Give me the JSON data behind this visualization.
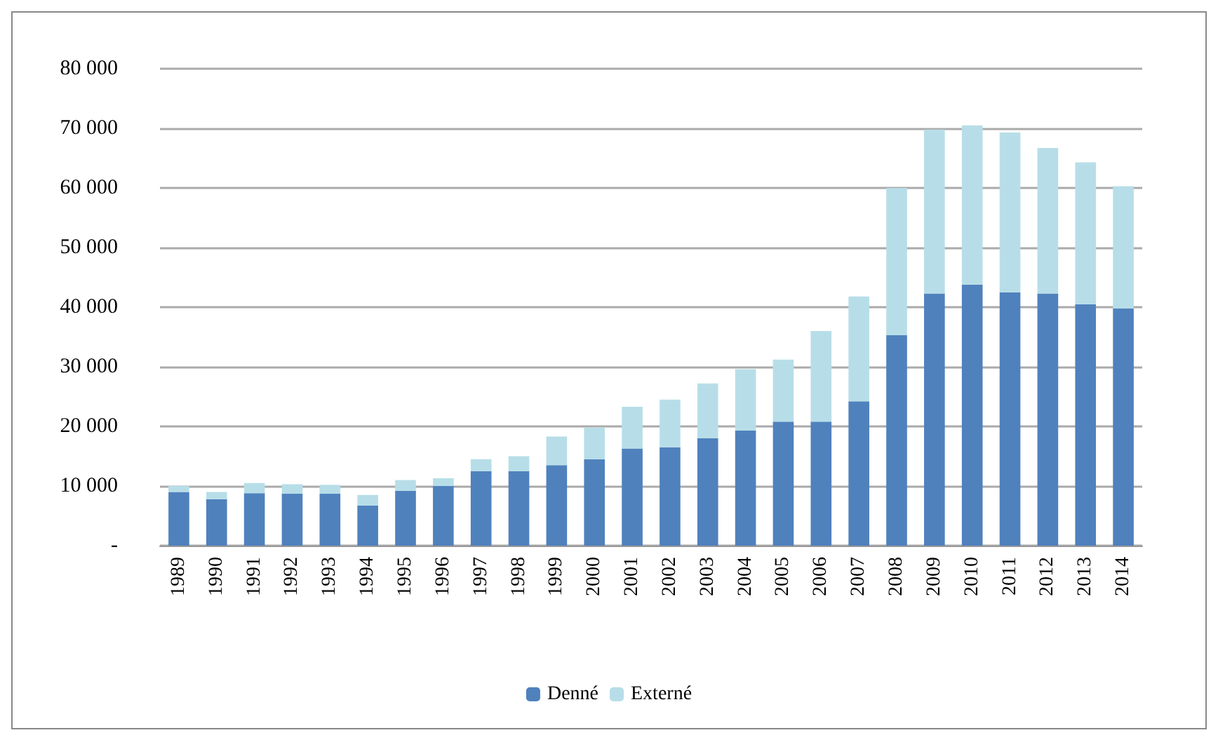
{
  "chart_data": {
    "type": "bar",
    "stacked": true,
    "categories": [
      "1989",
      "1990",
      "1991",
      "1992",
      "1993",
      "1994",
      "1995",
      "1996",
      "1997",
      "1998",
      "1999",
      "2000",
      "2001",
      "2002",
      "2003",
      "2004",
      "2005",
      "2006",
      "2007",
      "2008",
      "2009",
      "2010",
      "2011",
      "2012",
      "2013",
      "2014"
    ],
    "series": [
      {
        "name": "Denné",
        "color": "#4f81bd",
        "values": [
          9000,
          7800,
          8800,
          8700,
          8700,
          6700,
          9200,
          10000,
          12500,
          12500,
          13500,
          14500,
          16300,
          16500,
          18000,
          19300,
          20800,
          20800,
          24200,
          35300,
          42300,
          43800,
          42500,
          42300,
          40500,
          39800
        ]
      },
      {
        "name": "Externé",
        "color": "#b7dee8",
        "values": [
          1000,
          1200,
          1700,
          1600,
          1500,
          1800,
          1800,
          1300,
          2000,
          2500,
          4800,
          5300,
          7000,
          8000,
          9200,
          10300,
          10400,
          15200,
          17600,
          24700,
          27500,
          26700,
          26800,
          24400,
          23800,
          20500
        ]
      }
    ],
    "ylim": [
      0,
      80000
    ],
    "yticks": [
      {
        "value": 0,
        "label": "-"
      },
      {
        "value": 10000,
        "label": "10 000"
      },
      {
        "value": 20000,
        "label": "20 000"
      },
      {
        "value": 30000,
        "label": "30 000"
      },
      {
        "value": 40000,
        "label": "40 000"
      },
      {
        "value": 50000,
        "label": "50 000"
      },
      {
        "value": 60000,
        "label": "60 000"
      },
      {
        "value": 70000,
        "label": "70 000"
      },
      {
        "value": 80000,
        "label": "80 000"
      }
    ],
    "grid": "y",
    "legend": "bottom"
  }
}
